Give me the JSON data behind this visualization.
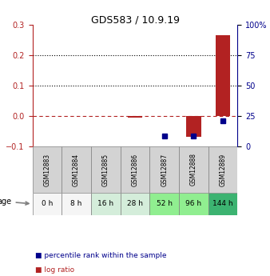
{
  "title": "GDS583 / 10.9.19",
  "samples": [
    "GSM12883",
    "GSM12884",
    "GSM12885",
    "GSM12886",
    "GSM12887",
    "GSM12888",
    "GSM12889"
  ],
  "ages": [
    "0 h",
    "8 h",
    "16 h",
    "28 h",
    "52 h",
    "96 h",
    "144 h"
  ],
  "log_ratio": [
    null,
    null,
    null,
    -0.005,
    null,
    -0.068,
    0.265
  ],
  "percentile_rank": [
    null,
    null,
    null,
    null,
    0.085,
    0.09,
    0.21
  ],
  "ylim_left": [
    -0.1,
    0.3
  ],
  "ylim_right": [
    0,
    100
  ],
  "yticks_left": [
    -0.1,
    0.0,
    0.1,
    0.2,
    0.3
  ],
  "yticks_right": [
    0,
    25,
    50,
    75,
    100
  ],
  "hline_y_left": [
    0.1,
    0.2
  ],
  "hline_zero": 0.0,
  "bar_color": "#b22222",
  "dot_color": "#00008b",
  "age_bg_colors": [
    "#f0f0f0",
    "#f0f0f0",
    "#d4edda",
    "#d4edda",
    "#90ee90",
    "#90ee90",
    "#3cb371"
  ],
  "sample_bg_color": "#d3d3d3",
  "legend_items": [
    "log ratio",
    "percentile rank within the sample"
  ],
  "legend_colors": [
    "#b22222",
    "#00008b"
  ]
}
